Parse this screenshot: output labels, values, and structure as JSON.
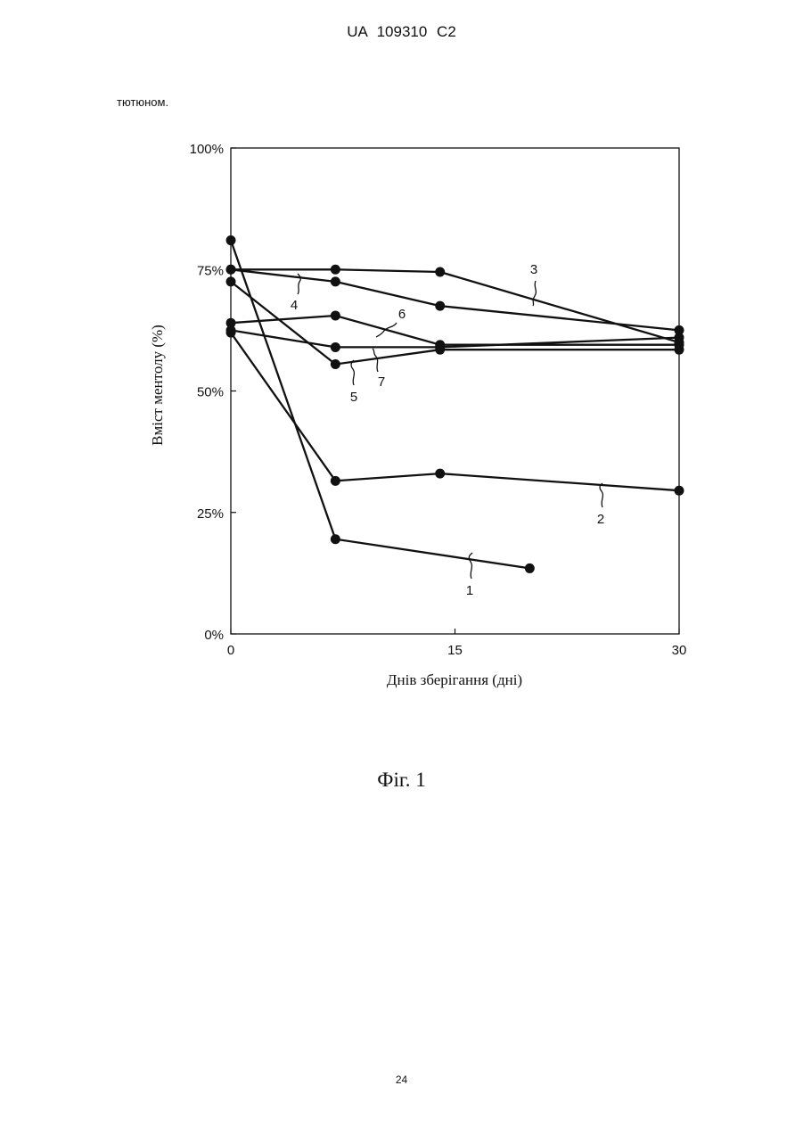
{
  "header": {
    "doc_id": "UA   109310   C2"
  },
  "intro_text": "тютюном.",
  "caption": "Фіг. 1",
  "page_number": "24",
  "chart_data": {
    "type": "line",
    "xlabel": "Днів зберігання (дні)",
    "ylabel": "Вміст ментолу (%)",
    "xlim": [
      0,
      30
    ],
    "ylim": [
      0,
      100
    ],
    "xticks": [
      "0",
      "15",
      "30"
    ],
    "xtick_values": [
      0,
      15,
      30
    ],
    "yticks": [
      "0%",
      "25%",
      "50%",
      "75%",
      "100%"
    ],
    "ytick_values": [
      0,
      25,
      50,
      75,
      100
    ],
    "grid": false,
    "series": [
      {
        "name": "1",
        "x": [
          0,
          7,
          20
        ],
        "y": [
          81,
          19.5,
          13.5
        ]
      },
      {
        "name": "2",
        "x": [
          0,
          7,
          14,
          30
        ],
        "y": [
          62,
          31.5,
          33,
          29.5
        ]
      },
      {
        "name": "3",
        "x": [
          0,
          7,
          14,
          30
        ],
        "y": [
          75,
          75,
          74.5,
          60
        ]
      },
      {
        "name": "4",
        "x": [
          0,
          7,
          14,
          30
        ],
        "y": [
          75,
          72.5,
          67.5,
          62.5
        ]
      },
      {
        "name": "5",
        "x": [
          0,
          7,
          14,
          30
        ],
        "y": [
          72.5,
          55.5,
          58.5,
          58.5
        ]
      },
      {
        "name": "6",
        "x": [
          0,
          7,
          14,
          30
        ],
        "y": [
          64,
          65.5,
          59.5,
          59.5
        ]
      },
      {
        "name": "7",
        "x": [
          0,
          7,
          14,
          30
        ],
        "y": [
          62.5,
          59,
          59,
          61
        ]
      }
    ]
  }
}
